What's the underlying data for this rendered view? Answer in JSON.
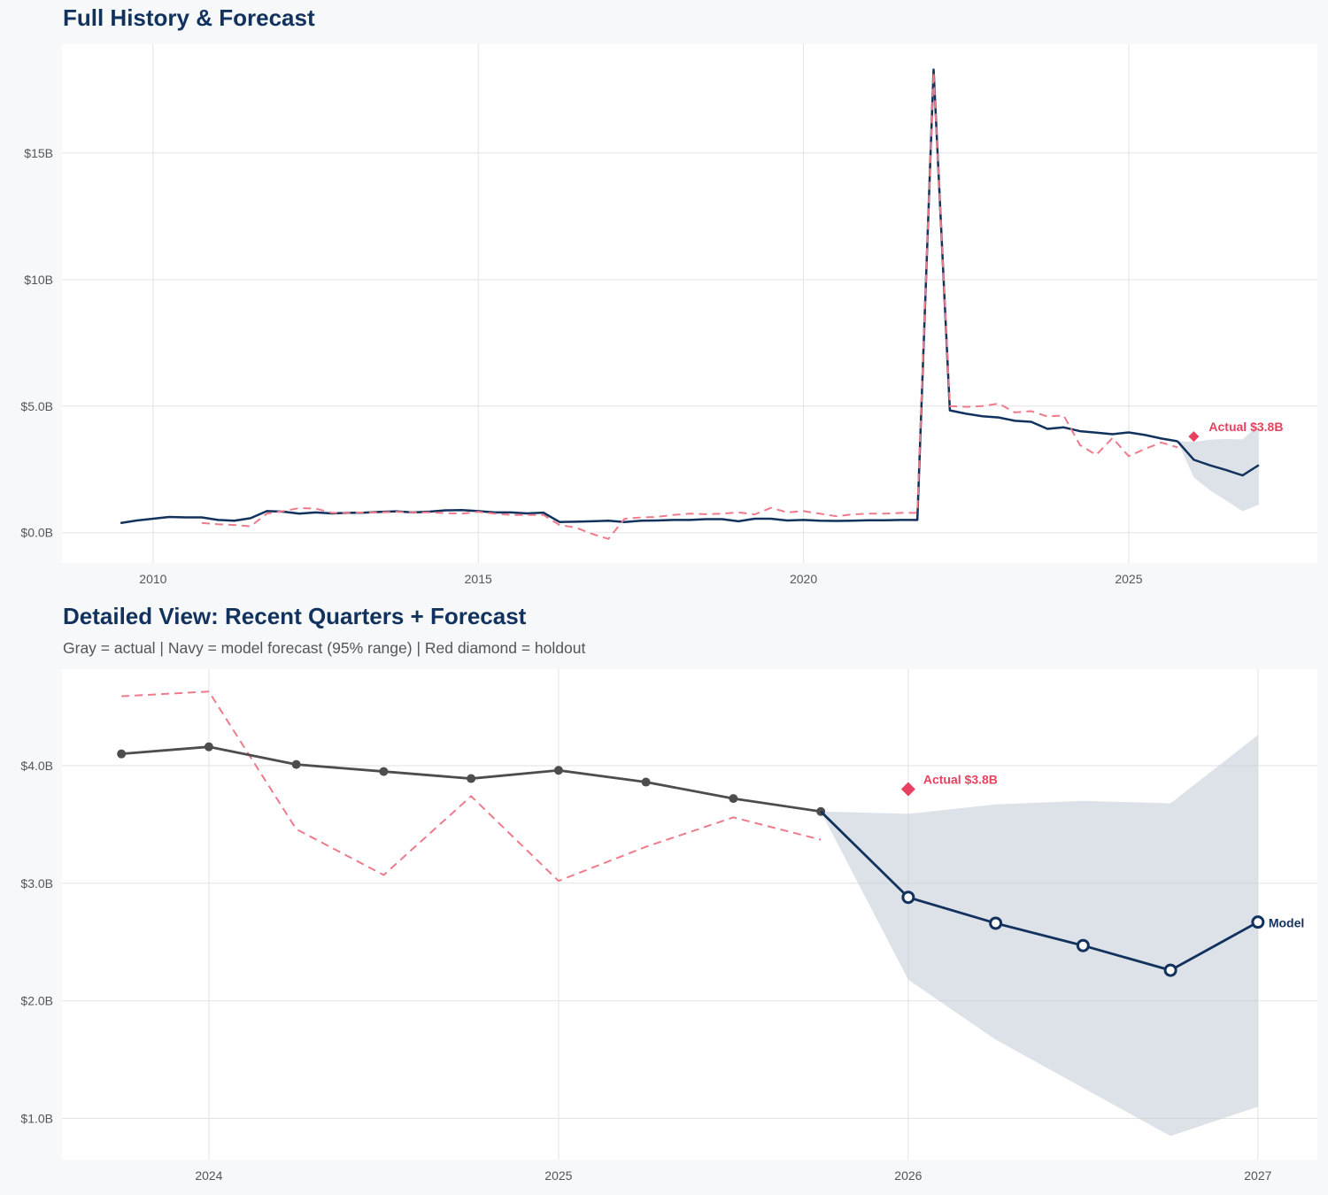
{
  "colors": {
    "navy": "#12325e",
    "gray": "#4d4d4d",
    "red": "#e8415f",
    "pink_dashed": "#ee7a8c",
    "band": "#c6cdd9",
    "grid": "#e2e2e2"
  },
  "chart_data": [
    {
      "type": "line",
      "title": "Full History & Forecast",
      "xlim": [
        2008.6,
        2027.9
      ],
      "ylim": [
        -1.2,
        19.3
      ],
      "xticks": [
        2010,
        2015,
        2020,
        2025
      ],
      "xtick_labels": [
        "2010",
        "2015",
        "2020",
        "2025"
      ],
      "yticks": [
        0,
        5,
        10,
        15
      ],
      "ytick_labels": [
        "$0.0B",
        "$5.0B",
        "$10B",
        "$15B"
      ],
      "grid": true,
      "series": [
        {
          "role": "actual",
          "color": "#12325e",
          "style": "solid",
          "points": [
            [
              2009.5,
              0.38
            ],
            [
              2009.75,
              0.48
            ],
            [
              2010,
              0.55
            ],
            [
              2010.25,
              0.62
            ],
            [
              2010.5,
              0.6
            ],
            [
              2010.75,
              0.6
            ],
            [
              2011,
              0.5
            ],
            [
              2011.25,
              0.47
            ],
            [
              2011.5,
              0.57
            ],
            [
              2011.75,
              0.85
            ],
            [
              2012,
              0.83
            ],
            [
              2012.25,
              0.75
            ],
            [
              2012.5,
              0.8
            ],
            [
              2012.75,
              0.76
            ],
            [
              2013,
              0.78
            ],
            [
              2013.25,
              0.79
            ],
            [
              2013.5,
              0.82
            ],
            [
              2013.75,
              0.84
            ],
            [
              2014,
              0.8
            ],
            [
              2014.25,
              0.83
            ],
            [
              2014.5,
              0.88
            ],
            [
              2014.75,
              0.89
            ],
            [
              2015,
              0.85
            ],
            [
              2015.25,
              0.8
            ],
            [
              2015.5,
              0.8
            ],
            [
              2015.75,
              0.76
            ],
            [
              2016,
              0.79
            ],
            [
              2016.25,
              0.42
            ],
            [
              2016.5,
              0.43
            ],
            [
              2016.75,
              0.45
            ],
            [
              2017,
              0.47
            ],
            [
              2017.25,
              0.42
            ],
            [
              2017.5,
              0.47
            ],
            [
              2017.75,
              0.48
            ],
            [
              2018,
              0.5
            ],
            [
              2018.25,
              0.5
            ],
            [
              2018.5,
              0.53
            ],
            [
              2018.75,
              0.53
            ],
            [
              2019,
              0.45
            ],
            [
              2019.25,
              0.55
            ],
            [
              2019.5,
              0.55
            ],
            [
              2019.75,
              0.48
            ],
            [
              2020,
              0.5
            ],
            [
              2020.25,
              0.47
            ],
            [
              2020.5,
              0.46
            ],
            [
              2020.75,
              0.47
            ],
            [
              2021,
              0.49
            ],
            [
              2021.25,
              0.49
            ],
            [
              2021.5,
              0.5
            ],
            [
              2021.75,
              0.5
            ],
            [
              2022,
              18.3
            ],
            [
              2022.25,
              4.83
            ],
            [
              2022.5,
              4.7
            ],
            [
              2022.75,
              4.6
            ],
            [
              2023,
              4.55
            ],
            [
              2023.25,
              4.42
            ],
            [
              2023.5,
              4.38
            ],
            [
              2023.75,
              4.1
            ],
            [
              2024,
              4.16
            ],
            [
              2024.25,
              4.01
            ],
            [
              2024.5,
              3.95
            ],
            [
              2024.75,
              3.89
            ],
            [
              2025,
              3.96
            ],
            [
              2025.25,
              3.86
            ],
            [
              2025.5,
              3.72
            ],
            [
              2025.75,
              3.61
            ]
          ]
        },
        {
          "role": "dashed",
          "color": "#ee7a8c",
          "style": "dashed",
          "points": [
            [
              2010.75,
              0.38
            ],
            [
              2011,
              0.33
            ],
            [
              2011.25,
              0.3
            ],
            [
              2011.5,
              0.25
            ],
            [
              2011.75,
              0.75
            ],
            [
              2012,
              0.85
            ],
            [
              2012.25,
              0.97
            ],
            [
              2012.5,
              0.95
            ],
            [
              2012.75,
              0.78
            ],
            [
              2013,
              0.78
            ],
            [
              2013.25,
              0.8
            ],
            [
              2013.5,
              0.8
            ],
            [
              2013.75,
              0.82
            ],
            [
              2014,
              0.8
            ],
            [
              2014.25,
              0.8
            ],
            [
              2014.5,
              0.77
            ],
            [
              2014.75,
              0.75
            ],
            [
              2015,
              0.82
            ],
            [
              2015.25,
              0.75
            ],
            [
              2015.5,
              0.7
            ],
            [
              2015.75,
              0.7
            ],
            [
              2016,
              0.7
            ],
            [
              2016.25,
              0.3
            ],
            [
              2016.5,
              0.2
            ],
            [
              2016.75,
              -0.05
            ],
            [
              2017,
              -0.25
            ],
            [
              2017.25,
              0.55
            ],
            [
              2017.5,
              0.6
            ],
            [
              2017.75,
              0.62
            ],
            [
              2018,
              0.7
            ],
            [
              2018.25,
              0.75
            ],
            [
              2018.5,
              0.73
            ],
            [
              2018.75,
              0.75
            ],
            [
              2019,
              0.8
            ],
            [
              2019.25,
              0.72
            ],
            [
              2019.5,
              0.98
            ],
            [
              2019.75,
              0.8
            ],
            [
              2020,
              0.85
            ],
            [
              2020.25,
              0.75
            ],
            [
              2020.5,
              0.65
            ],
            [
              2020.75,
              0.72
            ],
            [
              2021,
              0.75
            ],
            [
              2021.25,
              0.75
            ],
            [
              2021.5,
              0.78
            ],
            [
              2021.75,
              0.78
            ],
            [
              2022,
              18.2
            ],
            [
              2022.25,
              5.0
            ],
            [
              2022.5,
              4.97
            ],
            [
              2022.75,
              5.0
            ],
            [
              2023,
              5.1
            ],
            [
              2023.25,
              4.75
            ],
            [
              2023.5,
              4.8
            ],
            [
              2023.75,
              4.59
            ],
            [
              2024,
              4.63
            ],
            [
              2024.25,
              3.46
            ],
            [
              2024.5,
              3.07
            ],
            [
              2024.75,
              3.74
            ],
            [
              2025,
              3.02
            ],
            [
              2025.25,
              3.31
            ],
            [
              2025.5,
              3.56
            ],
            [
              2025.75,
              3.37
            ]
          ]
        },
        {
          "role": "forecast",
          "color": "#12325e",
          "style": "solid",
          "points": [
            [
              2025.75,
              3.61
            ],
            [
              2026,
              2.88
            ],
            [
              2026.25,
              2.66
            ],
            [
              2026.5,
              2.47
            ],
            [
              2026.75,
              2.26
            ],
            [
              2027,
              2.67
            ]
          ]
        }
      ],
      "band": {
        "label": "95% range",
        "points": [
          [
            2025.75,
            3.61,
            3.61
          ],
          [
            2026,
            2.18,
            3.59
          ],
          [
            2026.25,
            1.67,
            3.67
          ],
          [
            2026.5,
            1.26,
            3.7
          ],
          [
            2026.75,
            0.85,
            3.68
          ],
          [
            2027,
            1.1,
            4.26
          ]
        ]
      },
      "holdout": {
        "x": 2026,
        "y": 3.8,
        "label": "Actual $3.8B"
      }
    },
    {
      "type": "line",
      "title": "Detailed View: Recent Quarters + Forecast",
      "subtitle": "Gray = actual  |  Navy = model forecast (95% range)  |  Red diamond = holdout",
      "xlim": [
        2023.58,
        2027.17
      ],
      "ylim": [
        0.65,
        4.82
      ],
      "xticks": [
        2024,
        2025,
        2026,
        2027
      ],
      "xtick_labels": [
        "2024",
        "2025",
        "2026",
        "2027"
      ],
      "yticks": [
        1,
        2,
        3,
        4
      ],
      "ytick_labels": [
        "$1.0B",
        "$2.0B",
        "$3.0B",
        "$4.0B"
      ],
      "grid": true,
      "series": [
        {
          "role": "dashed",
          "color": "#ee7a8c",
          "style": "dashed",
          "points": [
            [
              2023.75,
              4.59
            ],
            [
              2024,
              4.63
            ],
            [
              2024.25,
              3.46
            ],
            [
              2024.5,
              3.07
            ],
            [
              2024.75,
              3.74
            ],
            [
              2025,
              3.02
            ],
            [
              2025.25,
              3.31
            ],
            [
              2025.5,
              3.56
            ],
            [
              2025.75,
              3.37
            ]
          ]
        },
        {
          "role": "actual",
          "color": "#4d4d4d",
          "style": "solid",
          "markers": "filled",
          "points": [
            [
              2023.75,
              4.1
            ],
            [
              2024,
              4.16
            ],
            [
              2024.25,
              4.01
            ],
            [
              2024.5,
              3.95
            ],
            [
              2024.75,
              3.89
            ],
            [
              2025,
              3.96
            ],
            [
              2025.25,
              3.86
            ],
            [
              2025.5,
              3.72
            ],
            [
              2025.75,
              3.61
            ]
          ]
        },
        {
          "role": "forecast",
          "color": "#12325e",
          "style": "solid",
          "markers": "hollow",
          "end_label": "Model",
          "points": [
            [
              2025.75,
              3.61
            ],
            [
              2026,
              2.88
            ],
            [
              2026.25,
              2.66
            ],
            [
              2026.5,
              2.47
            ],
            [
              2026.75,
              2.26
            ],
            [
              2027,
              2.67
            ]
          ]
        }
      ],
      "band": {
        "label": "95% range",
        "points": [
          [
            2025.75,
            3.61,
            3.61
          ],
          [
            2026,
            2.18,
            3.59
          ],
          [
            2026.25,
            1.67,
            3.67
          ],
          [
            2026.5,
            1.26,
            3.7
          ],
          [
            2026.75,
            0.85,
            3.68
          ],
          [
            2027,
            1.1,
            4.26
          ]
        ]
      },
      "holdout": {
        "x": 2026,
        "y": 3.8,
        "label": "Actual $3.8B"
      }
    }
  ]
}
